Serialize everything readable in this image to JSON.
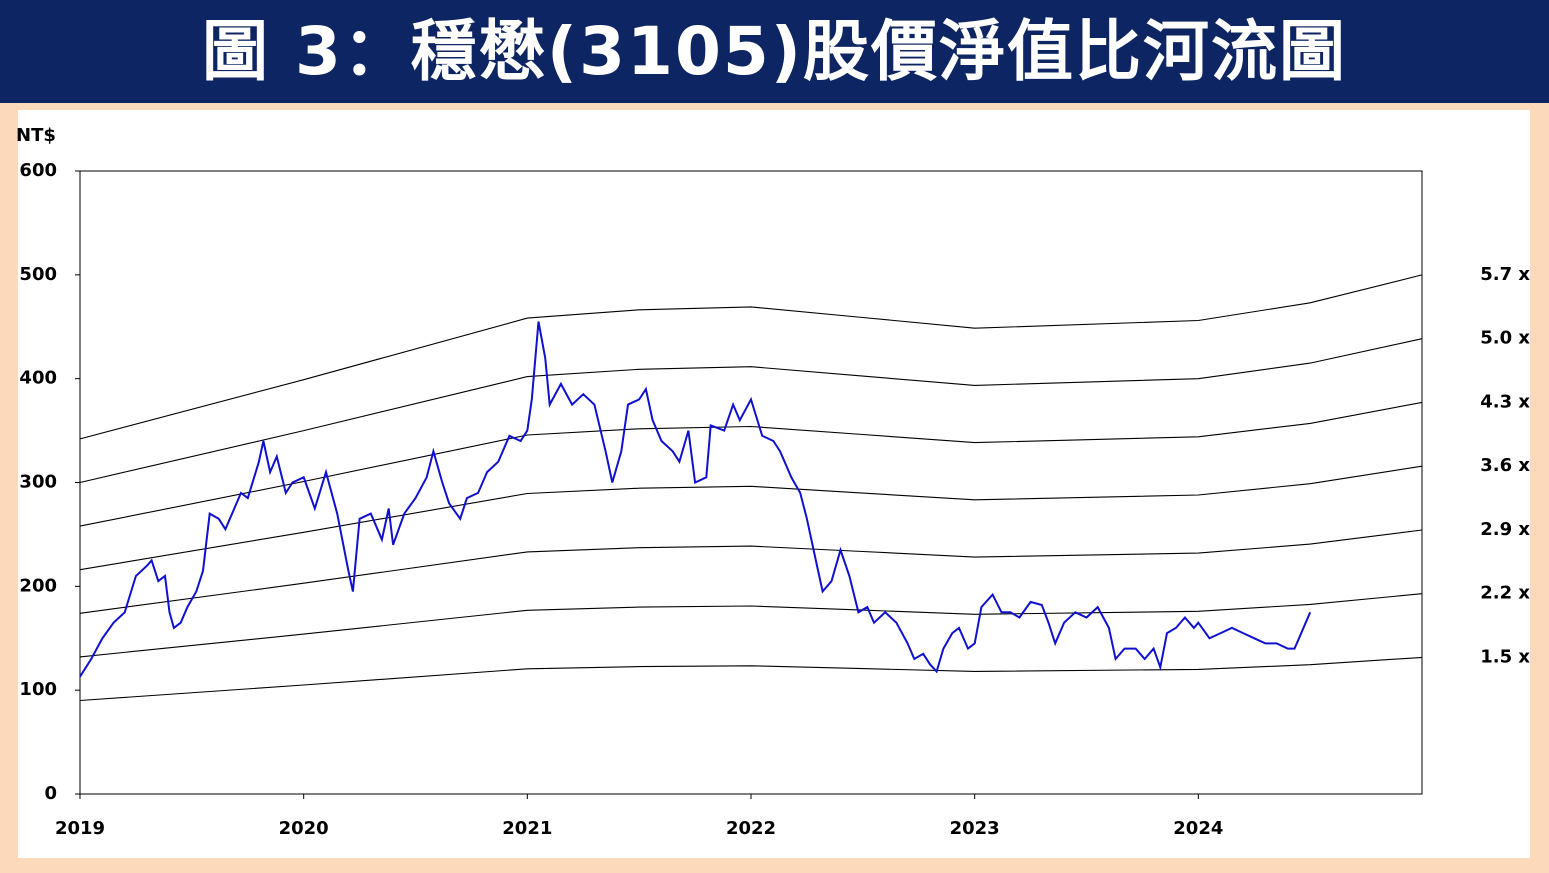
{
  "chart_data": {
    "type": "line",
    "title": "圖 3：穩懋(3105)股價淨值比河流圖",
    "y_label": "NT$",
    "xlim": [
      2019,
      2025
    ],
    "xticks": [
      2019,
      2020,
      2021,
      2022,
      2023,
      2024
    ],
    "ylim": [
      0,
      600
    ],
    "yticks": [
      0,
      100,
      200,
      300,
      400,
      500,
      600
    ],
    "series": [
      {
        "name": "5.7 x",
        "color": "#000000",
        "x": [
          2019,
          2020,
          2021,
          2021.5,
          2022,
          2022.5,
          2023,
          2024,
          2024.5,
          2025
        ],
        "values": [
          342,
          399,
          458.3,
          466.3,
          469.1,
          458.9,
          448.6,
          456,
          473.1,
          499.9
        ]
      },
      {
        "name": "5.0 x",
        "color": "#000000",
        "x": [
          2019,
          2020,
          2021,
          2021.5,
          2022,
          2022.5,
          2023,
          2024,
          2024.5,
          2025
        ],
        "values": [
          300,
          350,
          402,
          409,
          411.5,
          402.5,
          393.5,
          400,
          415,
          438.5
        ]
      },
      {
        "name": "4.3 x",
        "color": "#000000",
        "x": [
          2019,
          2020,
          2021,
          2021.5,
          2022,
          2022.5,
          2023,
          2024,
          2024.5,
          2025
        ],
        "values": [
          258,
          301,
          345.7,
          351.7,
          353.9,
          346.2,
          338.4,
          344,
          356.9,
          377.1
        ]
      },
      {
        "name": "3.6 x",
        "color": "#000000",
        "x": [
          2019,
          2020,
          2021,
          2021.5,
          2022,
          2022.5,
          2023,
          2024,
          2024.5,
          2025
        ],
        "values": [
          216,
          252,
          289.4,
          294.5,
          296.3,
          289.8,
          283.3,
          288,
          298.8,
          315.7
        ]
      },
      {
        "name": "2.9 x",
        "color": "#000000",
        "x": [
          2019,
          2020,
          2021,
          2021.5,
          2022,
          2022.5,
          2023,
          2024,
          2024.5,
          2025
        ],
        "values": [
          174,
          203,
          233.2,
          237.2,
          238.7,
          233.5,
          228.2,
          232,
          240.7,
          254.3
        ]
      },
      {
        "name": "2.2 x",
        "color": "#000000",
        "x": [
          2019,
          2020,
          2021,
          2021.5,
          2022,
          2022.5,
          2023,
          2024,
          2024.5,
          2025
        ],
        "values": [
          132,
          154,
          176.9,
          180,
          181.1,
          177.1,
          173.1,
          176,
          182.6,
          192.9
        ]
      },
      {
        "name": "1.5 x",
        "color": "#000000",
        "x": [
          2019,
          2020,
          2021,
          2021.5,
          2022,
          2022.5,
          2023,
          2024,
          2024.5,
          2025
        ],
        "values": [
          90,
          105,
          120.6,
          122.7,
          123.5,
          120.8,
          118.1,
          120,
          124.5,
          131.6
        ]
      },
      {
        "color": "#1010d0",
        "price": true,
        "x": [
          2019.0,
          2019.05,
          2019.1,
          2019.15,
          2019.2,
          2019.25,
          2019.3,
          2019.32,
          2019.35,
          2019.38,
          2019.4,
          2019.42,
          2019.45,
          2019.48,
          2019.52,
          2019.55,
          2019.58,
          2019.62,
          2019.65,
          2019.68,
          2019.72,
          2019.75,
          2019.8,
          2019.82,
          2019.85,
          2019.88,
          2019.92,
          2019.95,
          2020.0,
          2020.05,
          2020.1,
          2020.15,
          2020.2,
          2020.22,
          2020.25,
          2020.3,
          2020.35,
          2020.38,
          2020.4,
          2020.45,
          2020.5,
          2020.55,
          2020.58,
          2020.62,
          2020.65,
          2020.7,
          2020.73,
          2020.78,
          2020.82,
          2020.87,
          2020.92,
          2020.97,
          2021.0,
          2021.02,
          2021.05,
          2021.08,
          2021.1,
          2021.15,
          2021.2,
          2021.25,
          2021.3,
          2021.35,
          2021.38,
          2021.42,
          2021.45,
          2021.5,
          2021.53,
          2021.56,
          2021.6,
          2021.65,
          2021.68,
          2021.72,
          2021.75,
          2021.8,
          2021.82,
          2021.88,
          2021.92,
          2021.95,
          2022.0,
          2022.05,
          2022.1,
          2022.13,
          2022.18,
          2022.22,
          2022.25,
          2022.28,
          2022.32,
          2022.36,
          2022.4,
          2022.44,
          2022.48,
          2022.52,
          2022.55,
          2022.6,
          2022.65,
          2022.7,
          2022.73,
          2022.77,
          2022.8,
          2022.83,
          2022.86,
          2022.9,
          2022.93,
          2022.97,
          2023.0,
          2023.03,
          2023.08,
          2023.12,
          2023.16,
          2023.2,
          2023.25,
          2023.3,
          2023.33,
          2023.36,
          2023.4,
          2023.45,
          2023.5,
          2023.55,
          2023.6,
          2023.63,
          2023.67,
          2023.72,
          2023.76,
          2023.8,
          2023.83,
          2023.86,
          2023.9,
          2023.94,
          2023.98,
          2024.0,
          2024.05,
          2024.1,
          2024.15,
          2024.2,
          2024.25,
          2024.3,
          2024.35,
          2024.4,
          2024.43,
          2024.45,
          2024.48,
          2024.5
        ],
        "values": [
          113,
          130,
          150,
          165,
          175,
          210,
          220,
          225,
          205,
          210,
          175,
          160,
          165,
          180,
          195,
          215,
          270,
          265,
          255,
          270,
          290,
          285,
          320,
          340,
          310,
          325,
          290,
          300,
          305,
          275,
          310,
          270,
          215,
          195,
          265,
          270,
          245,
          275,
          240,
          270,
          285,
          305,
          330,
          300,
          280,
          265,
          285,
          290,
          310,
          320,
          345,
          340,
          350,
          380,
          455,
          420,
          375,
          395,
          375,
          385,
          375,
          330,
          300,
          330,
          375,
          380,
          390,
          360,
          340,
          330,
          320,
          350,
          300,
          305,
          355,
          350,
          375,
          360,
          380,
          345,
          340,
          330,
          305,
          290,
          265,
          235,
          195,
          205,
          235,
          210,
          175,
          180,
          165,
          175,
          165,
          145,
          130,
          135,
          125,
          118,
          140,
          155,
          160,
          140,
          145,
          180,
          192,
          175,
          175,
          170,
          185,
          182,
          165,
          145,
          165,
          175,
          170,
          180,
          160,
          130,
          140,
          140,
          130,
          140,
          122,
          155,
          160,
          170,
          160,
          165,
          150,
          155,
          160,
          155,
          150,
          145,
          145,
          140,
          140,
          150,
          165,
          175
        ]
      }
    ]
  }
}
